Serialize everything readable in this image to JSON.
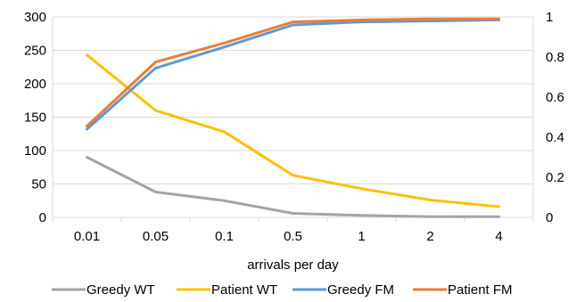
{
  "chart_data": {
    "type": "line",
    "title": "",
    "xlabel": "arrivals per day",
    "ylabel": "",
    "y2label": "",
    "categories": [
      "0.01",
      "0.05",
      "0.1",
      "0.5",
      "1",
      "2",
      "4"
    ],
    "ylim": [
      0,
      300
    ],
    "yticks": [
      "0",
      "50",
      "100",
      "150",
      "200",
      "250",
      "300"
    ],
    "y2lim": [
      0,
      1
    ],
    "y2ticks": [
      "0",
      "0.2",
      "0.4",
      "0.6",
      "0.8",
      "1"
    ],
    "grid": "horizontal",
    "legend_position": "bottom",
    "series": [
      {
        "name": "Greedy WT",
        "axis": "left",
        "color": "#A5A5A5",
        "values": [
          90,
          38,
          25,
          6,
          3,
          1,
          1
        ]
      },
      {
        "name": "Patient WT",
        "axis": "left",
        "color": "#FFC000",
        "values": [
          243,
          160,
          128,
          63,
          43,
          26,
          16
        ]
      },
      {
        "name": "Greedy FM",
        "axis": "right",
        "color": "#5B9BD5",
        "values": [
          0.44,
          0.745,
          0.85,
          0.96,
          0.975,
          0.98,
          0.985
        ]
      },
      {
        "name": "Patient FM",
        "axis": "right",
        "color": "#ED7D31",
        "values": [
          0.455,
          0.775,
          0.87,
          0.975,
          0.985,
          0.99,
          0.99
        ]
      }
    ]
  }
}
